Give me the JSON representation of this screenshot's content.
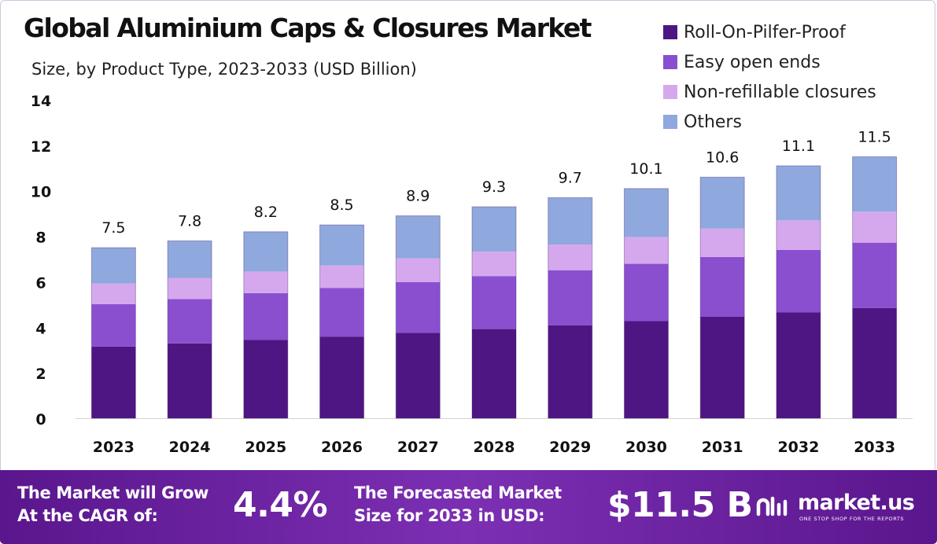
{
  "chart_data": {
    "type": "bar",
    "stacked": true,
    "title": "Global Aluminium Caps & Closures Market",
    "subtitle": "Size, by Product Type, 2023-2033 (USD Billion)",
    "categories": [
      "2023",
      "2024",
      "2025",
      "2026",
      "2027",
      "2028",
      "2029",
      "2030",
      "2031",
      "2032",
      "2033"
    ],
    "series": [
      {
        "name": "Roll-On-Pilfer-Proof",
        "color": "#4e1682",
        "values": [
          3.15,
          3.29,
          3.45,
          3.59,
          3.76,
          3.92,
          4.09,
          4.27,
          4.46,
          4.65,
          4.85
        ]
      },
      {
        "name": "Easy open ends",
        "color": "#8a4fcf",
        "values": [
          1.87,
          1.95,
          2.05,
          2.14,
          2.23,
          2.33,
          2.42,
          2.52,
          2.63,
          2.75,
          2.87
        ]
      },
      {
        "name": "Non-refillable closures",
        "color": "#d5a8ee",
        "values": [
          0.9,
          0.93,
          0.95,
          0.99,
          1.04,
          1.08,
          1.13,
          1.18,
          1.25,
          1.3,
          1.36
        ]
      },
      {
        "name": "Others",
        "color": "#8fa8dd",
        "values": [
          1.58,
          1.63,
          1.75,
          1.78,
          1.87,
          1.97,
          2.06,
          2.13,
          2.26,
          2.4,
          2.42
        ]
      }
    ],
    "totals": [
      "7.5",
      "7.8",
      "8.2",
      "8.5",
      "8.9",
      "9.3",
      "9.7",
      "10.1",
      "10.6",
      "11.1",
      "11.5"
    ],
    "ylim": [
      0,
      14
    ],
    "yticks": [
      0,
      2,
      4,
      6,
      8,
      10,
      12,
      14
    ],
    "legend_position": "top-right",
    "grid": false
  },
  "footer": {
    "cagr_label_line1": "The Market will Grow",
    "cagr_label_line2": "At the CAGR of:",
    "cagr_value": "4.4%",
    "forecast_label_line1": "The Forecasted Market",
    "forecast_label_line2": "Size for 2033 in USD:",
    "forecast_value": "$11.5 B"
  },
  "logo": {
    "name": "market.us",
    "tagline": "ONE STOP SHOP FOR THE REPORTS"
  }
}
